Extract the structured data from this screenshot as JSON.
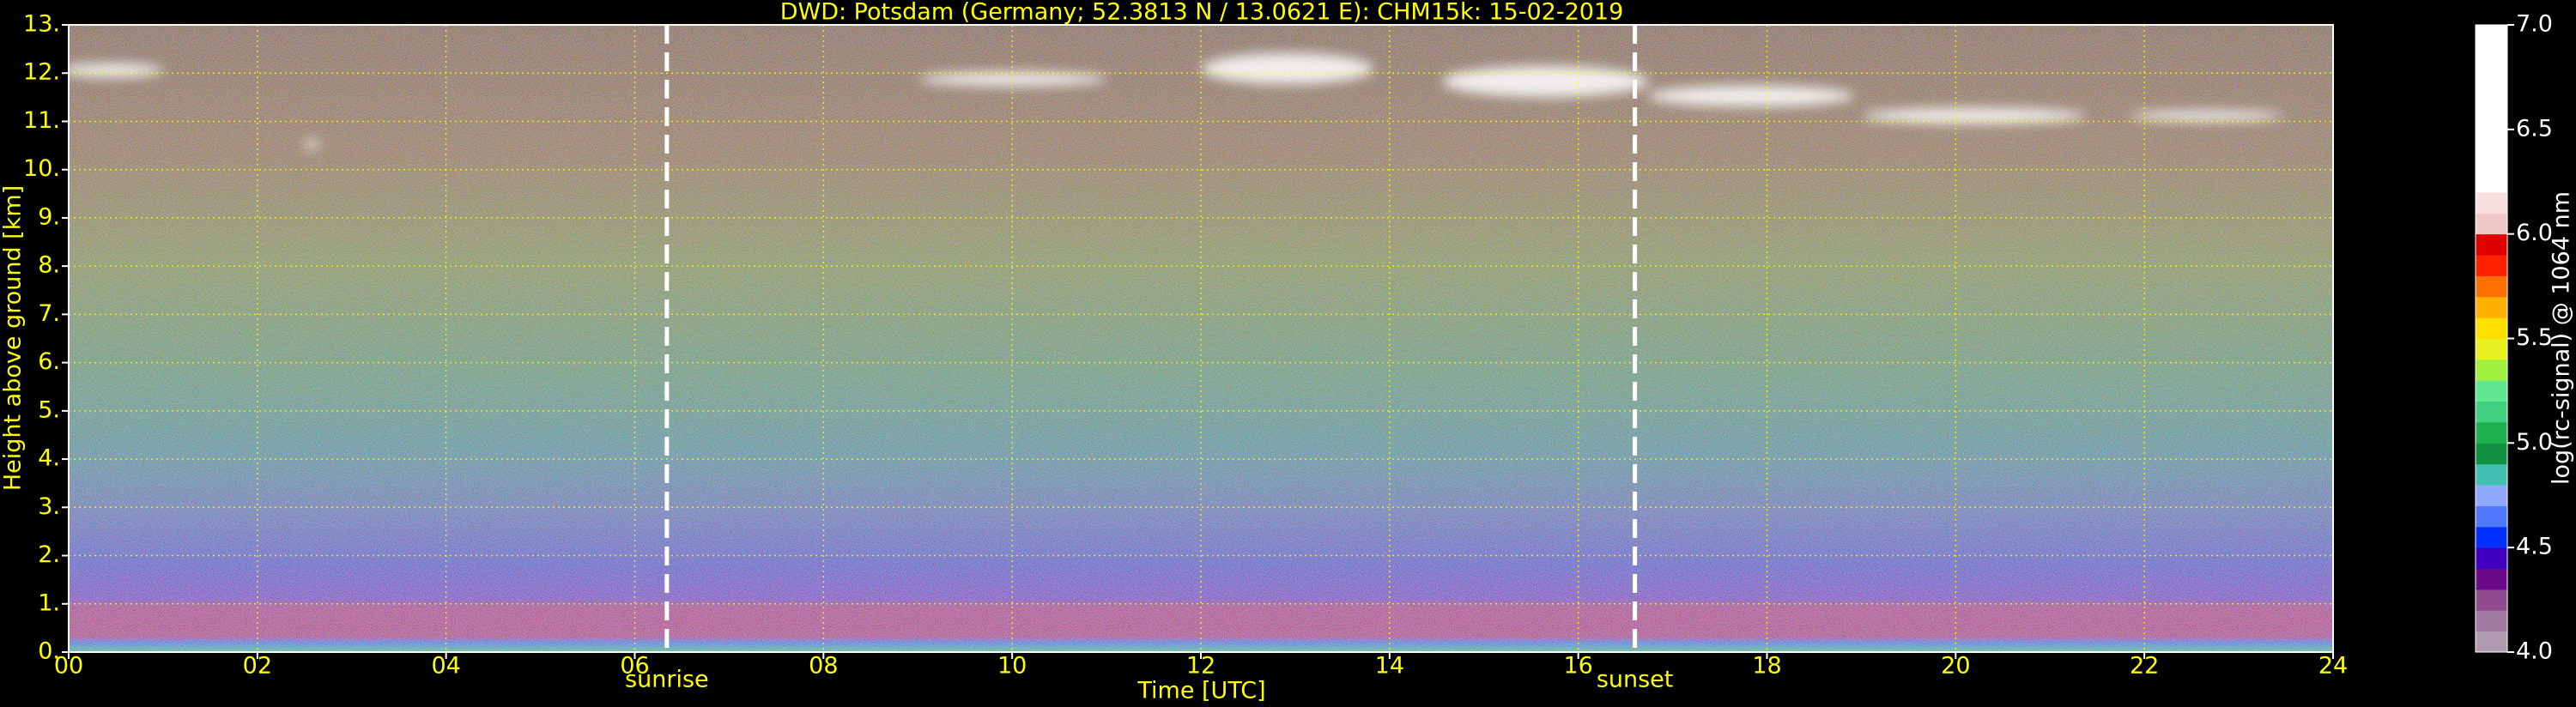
{
  "chart_data": {
    "type": "ceilometer",
    "title": "DWD: Potsdam (Germany; 52.3813 N / 13.0621 E):    CHM15k: 15-02-2019",
    "xlabel": "Time [UTC]",
    "ylabel": "Height above ground [km]",
    "xlim": [
      0,
      24
    ],
    "ylim": [
      0,
      13
    ],
    "xticks": [
      {
        "value": 0,
        "label": "00"
      },
      {
        "value": 2,
        "label": "02"
      },
      {
        "value": 4,
        "label": "04"
      },
      {
        "value": 6,
        "label": "06"
      },
      {
        "value": 8,
        "label": "08"
      },
      {
        "value": 10,
        "label": "10"
      },
      {
        "value": 12,
        "label": "12"
      },
      {
        "value": 14,
        "label": "14"
      },
      {
        "value": 16,
        "label": "16"
      },
      {
        "value": 18,
        "label": "18"
      },
      {
        "value": 20,
        "label": "20"
      },
      {
        "value": 22,
        "label": "22"
      },
      {
        "value": 24,
        "label": "24"
      }
    ],
    "yticks": [
      {
        "value": 0,
        "label": "0."
      },
      {
        "value": 1,
        "label": "1."
      },
      {
        "value": 2,
        "label": "2."
      },
      {
        "value": 3,
        "label": "3."
      },
      {
        "value": 4,
        "label": "4."
      },
      {
        "value": 5,
        "label": "5."
      },
      {
        "value": 6,
        "label": "6."
      },
      {
        "value": 7,
        "label": "7."
      },
      {
        "value": 8,
        "label": "8."
      },
      {
        "value": 9,
        "label": "9."
      },
      {
        "value": 10,
        "label": "10."
      },
      {
        "value": 11,
        "label": "11."
      },
      {
        "value": 12,
        "label": "12."
      },
      {
        "value": 13,
        "label": "13."
      }
    ],
    "grid": true,
    "grid_color": "#ffff00",
    "text_color": "#ffff00",
    "annotations": [
      {
        "x": 6.34,
        "text": "sunrise"
      },
      {
        "x": 16.6,
        "text": "sunset"
      }
    ],
    "colorbar": {
      "label": "log(rc-signal) @ 1064 nm",
      "lim": [
        4,
        7
      ],
      "ticks": [
        {
          "value": 4,
          "label": "4.0"
        },
        {
          "value": 4.5,
          "label": "4.5"
        },
        {
          "value": 5,
          "label": "5.0"
        },
        {
          "value": 5.5,
          "label": "5.5"
        },
        {
          "value": 6,
          "label": "6.0"
        },
        {
          "value": 6.5,
          "label": "6.5"
        },
        {
          "value": 7,
          "label": "7.0"
        }
      ],
      "colors": [
        "#b09ab0",
        "#a07aa0",
        "#904a90",
        "#6a0a8a",
        "#4000c0",
        "#0030ff",
        "#5078ff",
        "#90a8ff",
        "#40c0b0",
        "#109040",
        "#20b050",
        "#40d080",
        "#60e890",
        "#a0f040",
        "#e8f020",
        "#ffe000",
        "#ffb000",
        "#ff7000",
        "#ff2000",
        "#e00000",
        "#f0c8c8",
        "#f8e0e0",
        "#ffffff",
        "#ffffff",
        "#ffffff",
        "#ffffff",
        "#ffffff",
        "#ffffff",
        "#ffffff",
        "#ffffff"
      ]
    }
  }
}
